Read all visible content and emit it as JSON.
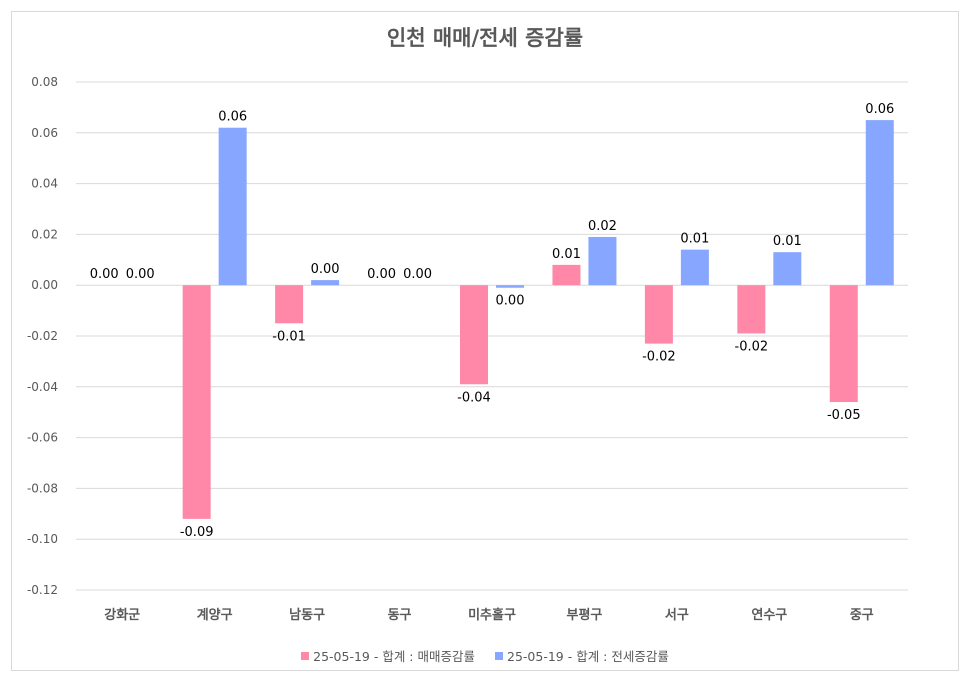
{
  "chart_data": {
    "type": "bar",
    "title": "인천 매매/전세 증감률",
    "categories": [
      "강화군",
      "계양구",
      "남동구",
      "동구",
      "미추홀구",
      "부평구",
      "서구",
      "연수구",
      "중구"
    ],
    "series": [
      {
        "name": "25-05-19 - 합계 : 매매증감률",
        "color": "#ff88a8",
        "values": [
          0.0,
          -0.092,
          -0.015,
          0.0,
          -0.039,
          0.008,
          -0.023,
          -0.019,
          -0.046
        ],
        "labels": [
          "0.00",
          "-0.09",
          "-0.01",
          "0.00",
          "-0.04",
          "0.01",
          "-0.02",
          "-0.02",
          "-0.05"
        ]
      },
      {
        "name": "25-05-19 - 합계 : 전세증감률",
        "color": "#87a6ff",
        "values": [
          0.0,
          0.062,
          0.002,
          0.0,
          -0.001,
          0.019,
          0.014,
          0.013,
          0.065
        ],
        "labels": [
          "0.00",
          "0.06",
          "0.00",
          "0.00",
          "0.00",
          "0.02",
          "0.01",
          "0.01",
          "0.06"
        ]
      }
    ],
    "ylim": [
      -0.12,
      0.08
    ],
    "yticks": [
      "0.08",
      "0.06",
      "0.04",
      "0.02",
      "0.00",
      "-0.02",
      "-0.04",
      "-0.06",
      "-0.08",
      "-0.10",
      "-0.12"
    ],
    "ytick_values": [
      0.08,
      0.06,
      0.04,
      0.02,
      0.0,
      -0.02,
      -0.04,
      -0.06,
      -0.08,
      -0.1,
      -0.12
    ],
    "grid": true,
    "legend": "bottom"
  }
}
